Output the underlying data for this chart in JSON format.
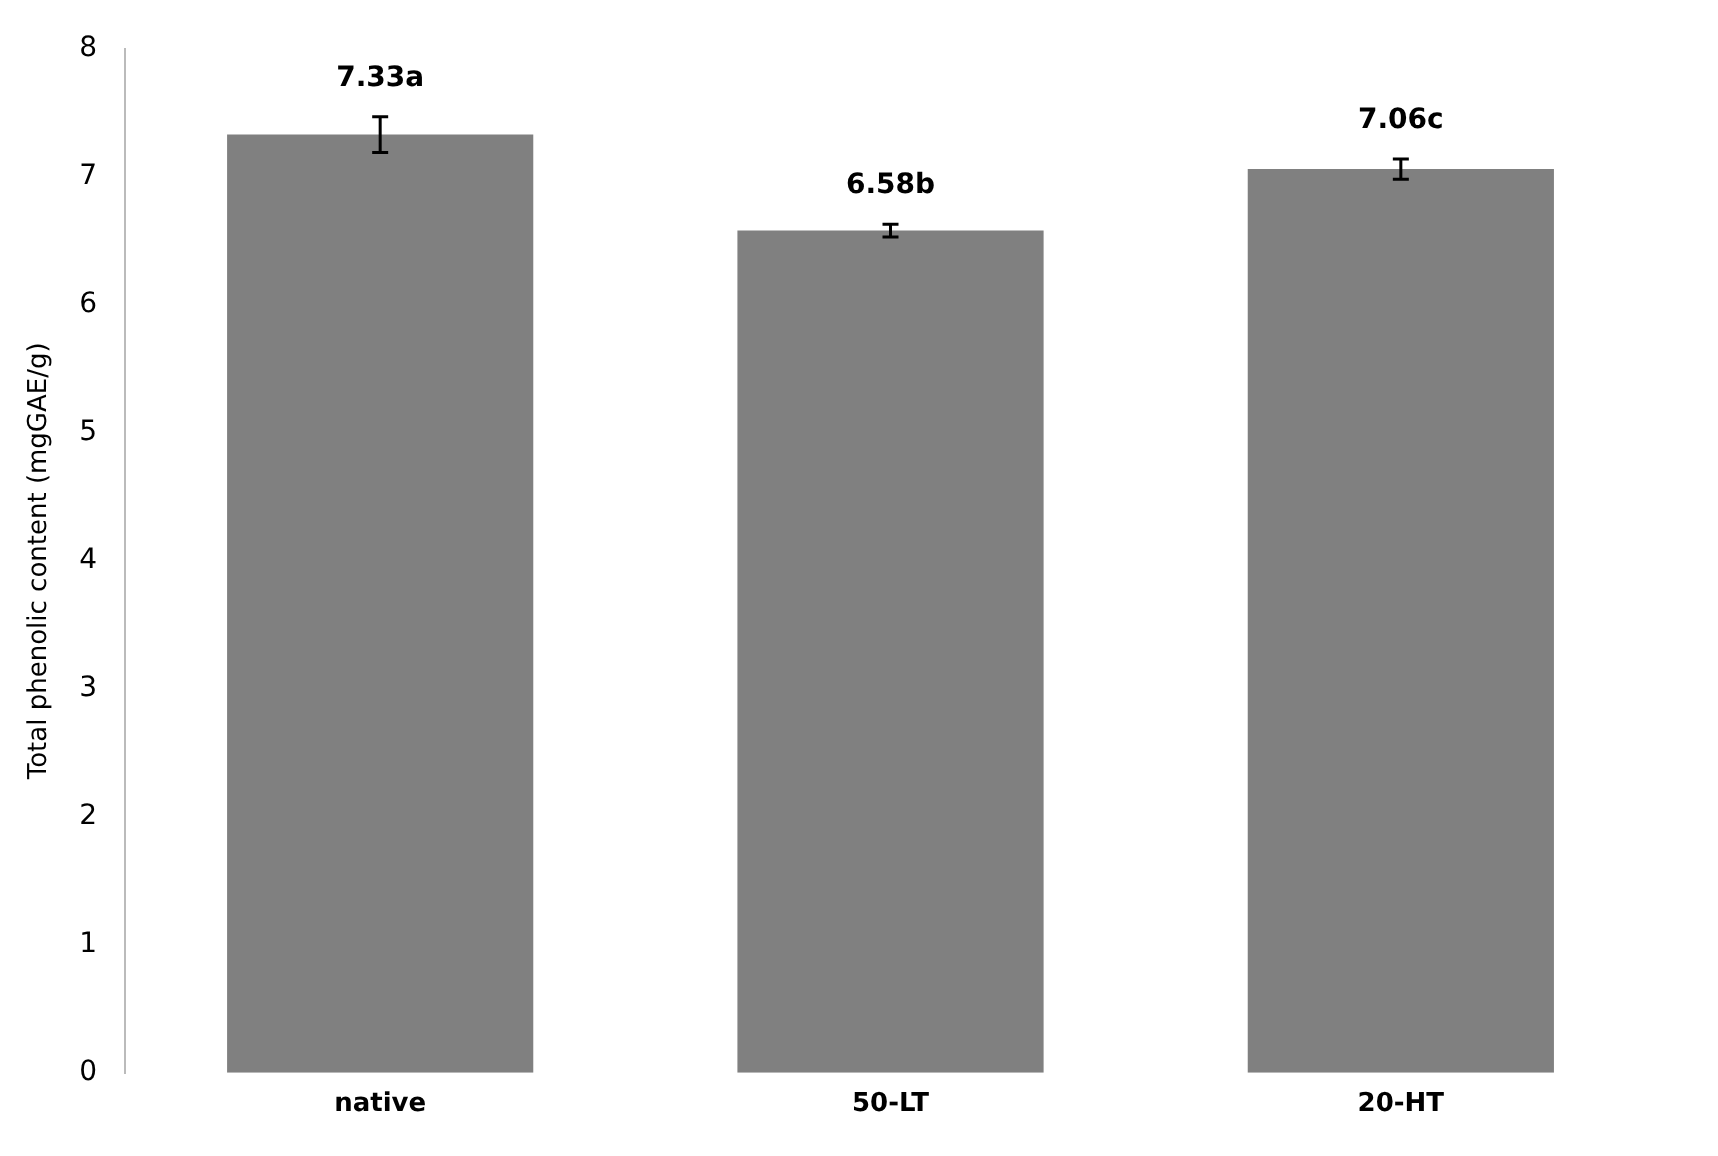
{
  "chart_data": {
    "type": "bar",
    "ylabel": "Total phenolic content (mgGAE/g)",
    "categories": [
      "native",
      "50-LT",
      "20-HT"
    ],
    "values": [
      7.33,
      6.58,
      7.06
    ],
    "errors": [
      0.14,
      0.05,
      0.08
    ],
    "value_labels": [
      "7.33a",
      "6.58b",
      "7.06c"
    ],
    "color": "#808080",
    "ylim": [
      0,
      8
    ],
    "yticks": [
      0,
      1,
      2,
      3,
      4,
      5,
      6,
      7,
      8
    ],
    "grid": false,
    "legend": false
  }
}
